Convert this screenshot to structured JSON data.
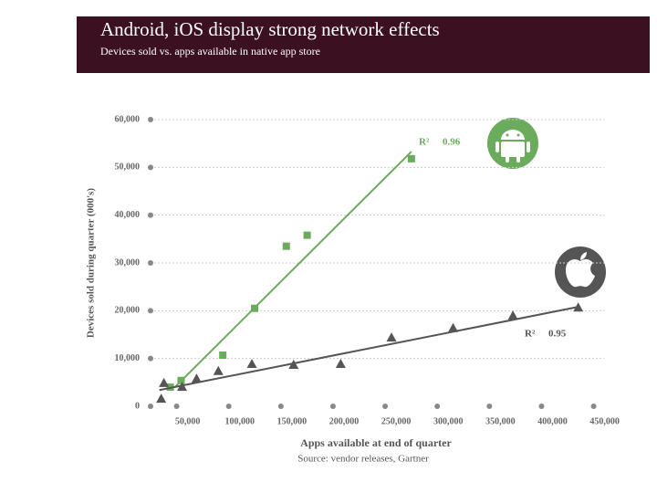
{
  "chart_data": {
    "type": "scatter",
    "title": "Android, iOS display strong network effects",
    "subtitle": "Devices sold vs. apps available in native app store",
    "x_label": "Apps available at end of quarter",
    "y_label": "Devices sold during quarter (000's)",
    "source": "Source: vendor releases, Gartner",
    "xlim": [
      25000,
      460000
    ],
    "ylim": [
      0,
      60000
    ],
    "xticks": [
      {
        "value": 50000,
        "label": "50,000"
      },
      {
        "value": 100000,
        "label": "100,000"
      },
      {
        "value": 150000,
        "label": "150,000"
      },
      {
        "value": 200000,
        "label": "200,000"
      },
      {
        "value": 250000,
        "label": "250,000"
      },
      {
        "value": 300000,
        "label": "300,000"
      },
      {
        "value": 350000,
        "label": "350,000"
      },
      {
        "value": 400000,
        "label": "400,000"
      },
      {
        "value": 450000,
        "label": "450,000"
      }
    ],
    "yticks": [
      0,
      {
        "value": 10000,
        "label": "10,000"
      },
      {
        "value": 20000,
        "label": "20,000"
      },
      {
        "value": 30000,
        "label": "30,000"
      },
      {
        "value": 40000,
        "label": "40,000"
      },
      {
        "value": 50000,
        "label": "50,000"
      },
      {
        "value": 60000,
        "label": "60,000"
      }
    ],
    "grid": true,
    "series": [
      {
        "color": "#6aab5c",
        "marker": "square",
        "x": [
          43900,
          54300,
          94300,
          124800,
          155200,
          175200,
          275200
        ],
        "values": [
          4000,
          5400,
          10700,
          20500,
          33500,
          35800,
          51800
        ],
        "trend": {
          "x": [
            48300,
            275200
          ],
          "values": [
            4000,
            53300
          ]
        },
        "annotation": [
          "R²",
          "0.96"
        ]
      },
      {
        "color": "#555555",
        "marker": "triangle",
        "x": [
          35200,
          37800,
          55200,
          69100,
          90000,
          122200,
          162200,
          207400,
          256100,
          315200,
          372600,
          435200
        ],
        "values": [
          1500,
          4800,
          4000,
          5700,
          7300,
          8800,
          8600,
          8800,
          14300,
          16300,
          18900,
          20600
        ],
        "trend": {
          "x": [
            33500,
            435200
          ],
          "values": [
            3400,
            20800
          ]
        },
        "annotation": [
          "R²",
          "0.95"
        ]
      }
    ]
  }
}
